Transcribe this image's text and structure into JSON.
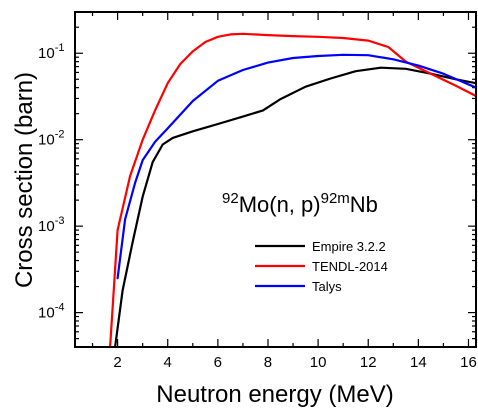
{
  "chart_data": {
    "type": "line",
    "xlabel": "Neutron energy (MeV)",
    "ylabel": "Cross section (barn)",
    "xlim": [
      0.3,
      16.3
    ],
    "ylim": [
      4e-05,
      0.3
    ],
    "yscale": "log",
    "x_ticks": [
      2,
      4,
      6,
      8,
      10,
      12,
      14,
      16
    ],
    "y_ticks": [
      {
        "value": 0.1,
        "base": "10",
        "exp": "-1"
      },
      {
        "value": 0.01,
        "base": "10",
        "exp": "-2"
      },
      {
        "value": 0.001,
        "base": "10",
        "exp": "-3"
      },
      {
        "value": 0.0001,
        "base": "10",
        "exp": "-4"
      }
    ],
    "annotation": {
      "pre_sup": "92",
      "main": "Mo(n, p)",
      "post_sup": "92m",
      "end": "Nb"
    },
    "legend_position": "center-right",
    "series": [
      {
        "name": "Empire 3.2.2",
        "color": "#000000",
        "x": [
          1.9,
          2.2,
          2.6,
          3.0,
          3.4,
          3.8,
          4.2,
          5.0,
          6.0,
          7.0,
          7.8,
          8.5,
          9.5,
          10.5,
          11.5,
          12.5,
          13.5,
          14.5,
          15.5,
          16.3
        ],
        "y": [
          4e-05,
          0.00018,
          0.00065,
          0.0022,
          0.0055,
          0.0088,
          0.0105,
          0.0125,
          0.0152,
          0.0185,
          0.0218,
          0.0295,
          0.041,
          0.051,
          0.062,
          0.068,
          0.066,
          0.058,
          0.05,
          0.045
        ]
      },
      {
        "name": "TENDL-2014",
        "color": "#ff0000",
        "x": [
          1.7,
          2.0,
          2.5,
          3.0,
          3.5,
          4.0,
          4.5,
          5.0,
          5.5,
          6.0,
          6.5,
          7.0,
          8.0,
          9.0,
          10.0,
          11.0,
          12.0,
          12.8,
          13.5,
          14.5,
          15.5,
          16.3
        ],
        "y": [
          4e-05,
          0.0009,
          0.0038,
          0.01,
          0.022,
          0.045,
          0.075,
          0.105,
          0.135,
          0.155,
          0.165,
          0.168,
          0.162,
          0.158,
          0.155,
          0.15,
          0.14,
          0.118,
          0.08,
          0.058,
          0.042,
          0.032
        ]
      },
      {
        "name": "Talys",
        "color": "#0000ff",
        "x": [
          2.0,
          2.3,
          2.7,
          3.0,
          3.5,
          4.0,
          5.0,
          6.0,
          7.0,
          8.0,
          9.0,
          10.0,
          11.0,
          12.0,
          13.0,
          14.0,
          15.0,
          16.3
        ],
        "y": [
          0.00025,
          0.0012,
          0.0032,
          0.0058,
          0.0095,
          0.0135,
          0.028,
          0.048,
          0.064,
          0.078,
          0.088,
          0.093,
          0.096,
          0.095,
          0.085,
          0.072,
          0.058,
          0.04
        ]
      }
    ]
  }
}
